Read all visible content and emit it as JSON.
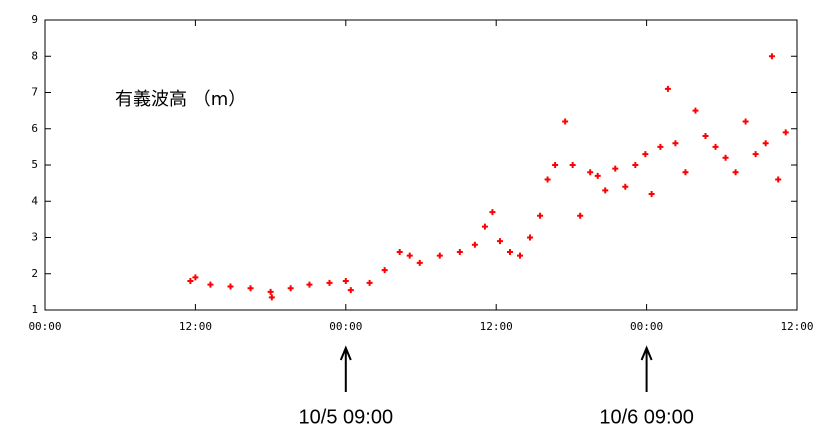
{
  "chart_data": {
    "type": "scatter",
    "title": "有義波高 （m）",
    "x": [
      11.6,
      12,
      13.2,
      14.8,
      16.4,
      18,
      18.1,
      19.6,
      21.1,
      22.7,
      24,
      24.4,
      25.9,
      27.1,
      28.3,
      29.1,
      29.9,
      31.5,
      33.1,
      34.3,
      35.1,
      35.7,
      36.3,
      37.1,
      37.9,
      38.7,
      39.5,
      40.1,
      40.7,
      41.5,
      42.1,
      42.7,
      43.5,
      44.1,
      44.7,
      45.5,
      46.3,
      47.1,
      47.9,
      48.4,
      49.1,
      49.7,
      50.3,
      51.1,
      51.9,
      52.7,
      53.5,
      54.3,
      55.1,
      55.9,
      56.7,
      57.5,
      58.0,
      58.5,
      59.1
    ],
    "values": [
      1.8,
      1.9,
      1.7,
      1.65,
      1.6,
      1.5,
      1.35,
      1.6,
      1.7,
      1.75,
      1.8,
      1.55,
      1.75,
      2.1,
      2.6,
      2.5,
      2.3,
      2.5,
      2.6,
      2.8,
      3.3,
      3.7,
      2.9,
      2.6,
      2.5,
      3.0,
      3.6,
      4.6,
      5.0,
      6.2,
      5.0,
      3.6,
      4.8,
      4.7,
      4.3,
      4.9,
      4.4,
      5.0,
      5.3,
      4.2,
      5.5,
      7.1,
      5.6,
      4.8,
      6.5,
      5.8,
      5.5,
      5.2,
      4.8,
      6.2,
      5.3,
      5.6,
      8.0,
      4.6,
      5.9
    ],
    "color": "#ff0000",
    "xlim": [
      0,
      60
    ],
    "xticks": [
      {
        "value": 0,
        "label": "00:00"
      },
      {
        "value": 12,
        "label": "12:00"
      },
      {
        "value": 24,
        "label": "00:00"
      },
      {
        "value": 36,
        "label": "12:00"
      },
      {
        "value": 48,
        "label": "00:00"
      },
      {
        "value": 60,
        "label": "12:00"
      }
    ],
    "ylim": [
      1,
      9
    ],
    "yticks": [
      1,
      2,
      3,
      4,
      5,
      6,
      7,
      8,
      9
    ],
    "annotations": [
      {
        "text": "10/5  09:00",
        "x": 24
      },
      {
        "text": "10/6  09:00",
        "x": 48
      }
    ]
  }
}
